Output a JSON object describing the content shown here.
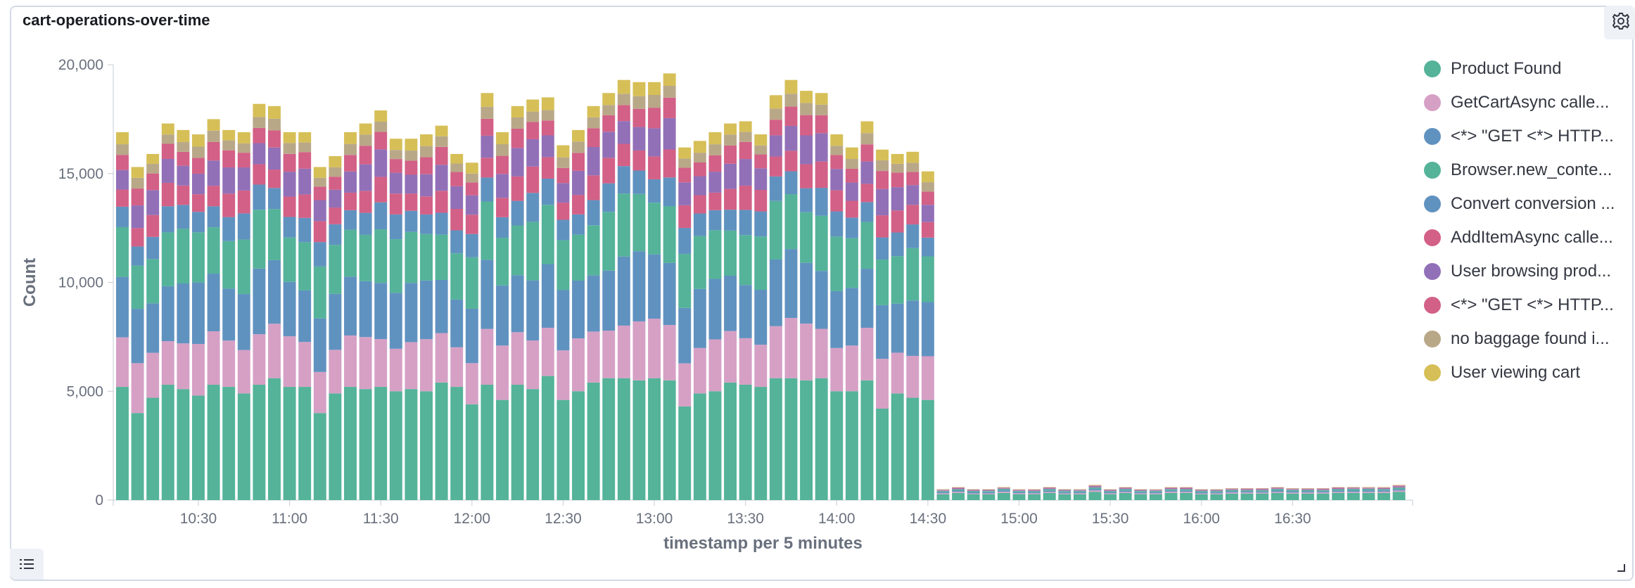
{
  "panel": {
    "title": "cart-operations-over-time"
  },
  "icons": {
    "settings": "gear-icon",
    "legend_toggle": "list-icon",
    "resize": "resize-corner-icon"
  },
  "chart_data": {
    "type": "bar",
    "stacked": true,
    "title": "cart-operations-over-time",
    "xlabel": "timestamp per 5 minutes",
    "ylabel": "Count",
    "ylim": [
      0,
      20000
    ],
    "y_ticks": [
      0,
      5000,
      10000,
      15000,
      20000
    ],
    "y_tick_labels": [
      "0",
      "5,000",
      "10,000",
      "15,000",
      "20,000"
    ],
    "x_ticks": [
      "10:30",
      "11:00",
      "11:30",
      "12:00",
      "12:30",
      "13:00",
      "13:30",
      "14:00",
      "14:30",
      "15:00",
      "15:30",
      "16:00",
      "16:30"
    ],
    "x_start": "10:05",
    "interval_minutes": 5,
    "legend_position": "right",
    "series": [
      {
        "name": "Product Found",
        "color": "#54b399"
      },
      {
        "name": "GetCartAsync calle...",
        "color": "#d6a0c5"
      },
      {
        "name": "<*> \"GET <*> HTTP...",
        "color": "#6092c0"
      },
      {
        "name": "Browser.new_conte...",
        "color": "#54b399"
      },
      {
        "name": "Convert conversion ...",
        "color": "#6092c0"
      },
      {
        "name": "AddItemAsync calle...",
        "color": "#d36086"
      },
      {
        "name": "User browsing prod...",
        "color": "#9170b8"
      },
      {
        "name": "<*> \"GET <*> HTTP...",
        "color": "#d36086"
      },
      {
        "name": "no baggage found i...",
        "color": "#b9a888"
      },
      {
        "name": "User viewing cart",
        "color": "#d6bf57"
      }
    ],
    "totals": [
      16900,
      15300,
      15900,
      17300,
      17000,
      16800,
      17500,
      17000,
      16900,
      18200,
      18100,
      16900,
      16900,
      15300,
      15800,
      16900,
      17300,
      17900,
      16600,
      16600,
      16800,
      17200,
      15900,
      15500,
      18700,
      16900,
      18100,
      18400,
      18500,
      16300,
      17000,
      18100,
      18700,
      19300,
      19200,
      19200,
      19600,
      16200,
      16500,
      16900,
      17300,
      17400,
      16800,
      18600,
      19300,
      18800,
      18700,
      16800,
      16200,
      17400,
      16100,
      15900,
      16000,
      15100,
      500,
      600,
      500,
      500,
      600,
      500,
      500,
      600,
      500,
      500,
      700,
      500,
      600,
      500,
      500,
      600,
      600,
      500,
      500,
      550,
      550,
      550,
      600,
      550,
      550,
      550,
      600,
      600,
      600,
      600,
      700
    ],
    "product_found": [
      5200,
      4000,
      4700,
      5300,
      5100,
      4800,
      5300,
      5200,
      4900,
      5300,
      5600,
      5200,
      5200,
      4000,
      4900,
      5200,
      5100,
      5200,
      5000,
      5100,
      5000,
      5400,
      5200,
      4400,
      5300,
      4600,
      5300,
      5100,
      5700,
      4600,
      5000,
      5400,
      5600,
      5600,
      5500,
      5600,
      5500,
      4300,
      4900,
      5000,
      5400,
      5300,
      5200,
      5600,
      5600,
      5500,
      5600,
      5000,
      5000,
      5500,
      4200,
      4900,
      4700,
      4600,
      270,
      330,
      270,
      270,
      330,
      270,
      270,
      330,
      270,
      270,
      380,
      270,
      330,
      270,
      270,
      330,
      330,
      270,
      270,
      300,
      300,
      300,
      330,
      300,
      300,
      300,
      330,
      330,
      330,
      330,
      380
    ],
    "bar_counts": {
      "dense_period": 54,
      "sparse_period": 31
    }
  }
}
